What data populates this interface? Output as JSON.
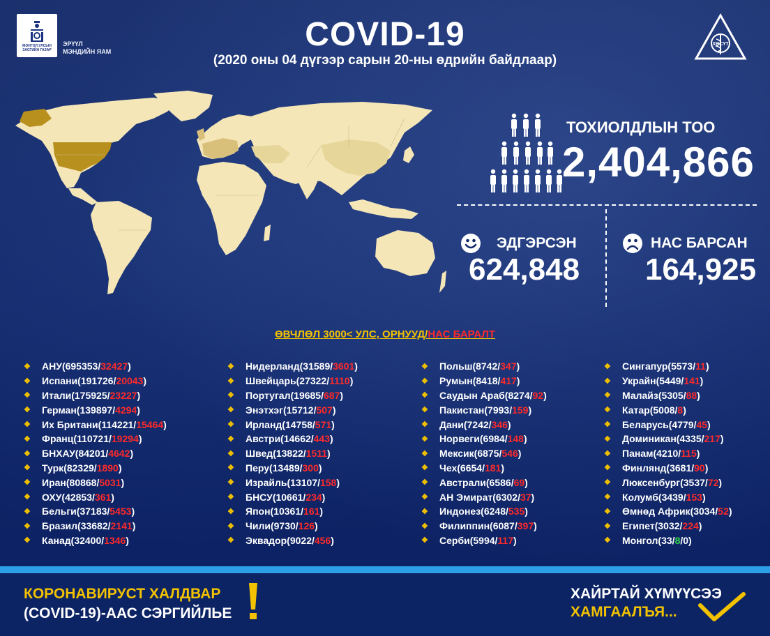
{
  "header": {
    "logo_text": "МОНГОЛ УЛСЫН ЗАСГИЙН ГАЗАР",
    "ministry_line1": "ЭРҮҮЛ",
    "ministry_line2": "МЭНДИЙН ЯАМ",
    "title": "COVID-19",
    "subtitle": "(2020 оны 04 дүгээр сарын 20-ны өдрийн байдлаар)",
    "emblem_text": "ХӨСҮТ"
  },
  "stats": {
    "cases_label": "ТОХИОЛДЛЫН ТОО",
    "cases_value": "2,404,866",
    "recovered_label": "ЭДГЭРСЭН",
    "recovered_value": "624,848",
    "deaths_label": "НАС БАРСАН",
    "deaths_value": "164,925"
  },
  "list_title": {
    "main": "ӨВЧЛӨЛ 3000< УЛС, ОРНУУД/",
    "red": "НАС БАРАЛТ"
  },
  "columns": [
    [
      {
        "name": "АНУ",
        "cases": "695353",
        "deaths": "32427"
      },
      {
        "name": "Испани",
        "cases": "191726",
        "deaths": "20043"
      },
      {
        "name": "Итали",
        "cases": "175925",
        "deaths": "23227"
      },
      {
        "name": "Герман",
        "cases": "139897",
        "deaths": "4294"
      },
      {
        "name": "Их Британи",
        "cases": "114221",
        "deaths": "15464"
      },
      {
        "name": "Франц",
        "cases": "110721",
        "deaths": "19294"
      },
      {
        "name": "БНХАУ",
        "cases": "84201",
        "deaths": "4642",
        "nospace": true
      },
      {
        "name": "Турк",
        "cases": "82329",
        "deaths": "1890"
      },
      {
        "name": "Иран",
        "cases": "80868",
        "deaths": "5031"
      },
      {
        "name": "ОХУ",
        "cases": "42853",
        "deaths": "361"
      },
      {
        "name": "Бельги",
        "cases": "37183",
        "deaths": "5453"
      },
      {
        "name": "Бразил",
        "cases": "33682",
        "deaths": "2141"
      },
      {
        "name": "Канад",
        "cases": "32400",
        "deaths": "1346"
      }
    ],
    [
      {
        "name": "Нидерланд",
        "cases": "31589",
        "deaths": "3601"
      },
      {
        "name": "Швейцарь",
        "cases": "27322",
        "deaths": "1110"
      },
      {
        "name": "Португал",
        "cases": "19685",
        "deaths": "687"
      },
      {
        "name": "Энэтхэг",
        "cases": "15712",
        "deaths": "507"
      },
      {
        "name": "Ирланд",
        "cases": "14758",
        "deaths": "571"
      },
      {
        "name": "Австри",
        "cases": "14662",
        "deaths": "443"
      },
      {
        "name": "Швед",
        "cases": "13822",
        "deaths": "1511"
      },
      {
        "name": "Перу",
        "cases": "13489",
        "deaths": "300"
      },
      {
        "name": "Израйль",
        "cases": "13107",
        "deaths": "158"
      },
      {
        "name": "БНСУ",
        "cases": "10661",
        "deaths": "234"
      },
      {
        "name": "Япон",
        "cases": "10361",
        "deaths": "161"
      },
      {
        "name": "Чили",
        "cases": "9730",
        "deaths": "126"
      },
      {
        "name": "Эквадор",
        "cases": "9022",
        "deaths": "456"
      }
    ],
    [
      {
        "name": "Польш",
        "cases": "8742",
        "deaths": "347"
      },
      {
        "name": "Румын",
        "cases": "8418",
        "deaths": "417"
      },
      {
        "name": "Саудын Араб",
        "cases": "8274",
        "deaths": "92"
      },
      {
        "name": "Пакистан",
        "cases": "7993",
        "deaths": "159"
      },
      {
        "name": "Дани",
        "cases": "7242",
        "deaths": "346"
      },
      {
        "name": "Норвеги",
        "cases": "6984",
        "deaths": "148"
      },
      {
        "name": "Мексик",
        "cases": "6875",
        "deaths": "546"
      },
      {
        "name": "Чех",
        "cases": "6654",
        "deaths": "181"
      },
      {
        "name": "Австрали",
        "cases": "6586",
        "deaths": "69"
      },
      {
        "name": "АН Эмират",
        "cases": "6302",
        "deaths": "37"
      },
      {
        "name": "Индонез",
        "cases": "6248",
        "deaths": "535"
      },
      {
        "name": "Филиппин",
        "cases": "6087",
        "deaths": "397"
      },
      {
        "name": "Серби",
        "cases": "5994",
        "deaths": "117"
      }
    ],
    [
      {
        "name": "Сингапур",
        "cases": "5573",
        "deaths": "11"
      },
      {
        "name": "Украйн",
        "cases": "5449",
        "deaths": "141"
      },
      {
        "name": "Малайз",
        "cases": "5305",
        "deaths": "88"
      },
      {
        "name": "Катар",
        "cases": "5008",
        "deaths": "8"
      },
      {
        "name": "Беларусь",
        "cases": "4779",
        "deaths": "45"
      },
      {
        "name": "Доминикан",
        "cases": "4335",
        "deaths": "217"
      },
      {
        "name": "Панам",
        "cases": "4210",
        "deaths": "115"
      },
      {
        "name": "Финлянд",
        "cases": "3681",
        "deaths": "90"
      },
      {
        "name": "Люксенбург",
        "cases": "3537",
        "deaths": "72"
      },
      {
        "name": "Колумб",
        "cases": "3439",
        "deaths": "153"
      },
      {
        "name": "Өмнөд Африк",
        "cases": "3034",
        "deaths": "52"
      },
      {
        "name": "Египет",
        "cases": "3032",
        "deaths": "224"
      },
      {
        "name": "Монгол",
        "cases": "33",
        "recovered": "8",
        "deaths_plain": "0"
      }
    ]
  ],
  "footer": {
    "left_line1": "КОРОНАВИРУСТ ХАЛДВАР",
    "left_line2": "(COVID-19)-ААС СЭРГИЙЛЬЕ",
    "right_line1": "ХАЙРТАЙ ХҮМҮҮСЭЭ",
    "right_line2": "ХАМГААЛЪЯ..."
  },
  "colors": {
    "background": "#13296a",
    "accent_yellow": "#f2c200",
    "deaths_red": "#ff2a2a",
    "recovered_green": "#2fd94a",
    "map_land": "#f5e6b8",
    "map_highlight": "#b8901e",
    "stripe_blue": "#2d9fe6"
  }
}
